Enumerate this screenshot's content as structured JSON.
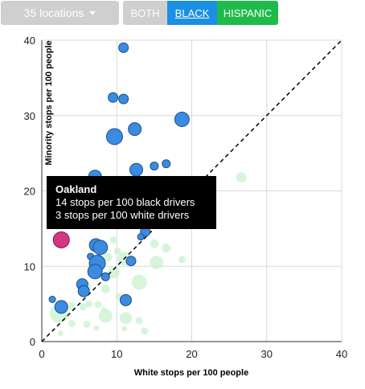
{
  "controls": {
    "locations_label": "35 locations",
    "both_label": "BOTH",
    "black_label": "BLACK",
    "hispanic_label": "HISPANIC",
    "active": "BLACK"
  },
  "colors": {
    "black_fill": "#3b8be0",
    "black_stroke": "#1d4f8a",
    "highlight_fill": "#d63584",
    "hispanic_fill": "#c9f2cf",
    "diagonal": "#000000",
    "grid": "#d9d9d9"
  },
  "tooltip": {
    "title": "Oakland",
    "line1": "14 stops per 100 black drivers",
    "line2": "3 stops per 100 white drivers"
  },
  "chart_data": {
    "type": "scatter",
    "xlabel": "White stops per 100 people",
    "ylabel": "Minority stops per 100 people",
    "xlim": [
      0,
      40
    ],
    "ylim": [
      0,
      40
    ],
    "xticks": [
      0,
      10,
      20,
      30,
      40
    ],
    "yticks": [
      0,
      10,
      20,
      30,
      40
    ],
    "grid": true,
    "reference_line": "y = x (dashed)",
    "series": [
      {
        "points": [
          {
            "x": 10.9,
            "y": 39.0,
            "r": 6
          },
          {
            "x": 9.5,
            "y": 32.4,
            "r": 6
          },
          {
            "x": 10.9,
            "y": 32.2,
            "r": 6
          },
          {
            "x": 18.7,
            "y": 29.5,
            "r": 9
          },
          {
            "x": 12.4,
            "y": 28.2,
            "r": 8
          },
          {
            "x": 9.7,
            "y": 27.2,
            "r": 10
          },
          {
            "x": 15.0,
            "y": 23.3,
            "r": 5
          },
          {
            "x": 16.6,
            "y": 23.6,
            "r": 5
          },
          {
            "x": 12.6,
            "y": 22.8,
            "r": 8
          },
          {
            "x": 7.1,
            "y": 21.9,
            "r": 8
          },
          {
            "x": 13.8,
            "y": 14.6,
            "r": 6
          },
          {
            "x": 13.2,
            "y": 13.9,
            "r": 4
          },
          {
            "x": 7.7,
            "y": 15.8,
            "r": 6
          },
          {
            "x": 7.2,
            "y": 12.8,
            "r": 8
          },
          {
            "x": 7.8,
            "y": 12.5,
            "r": 9
          },
          {
            "x": 6.5,
            "y": 11.3,
            "r": 4
          },
          {
            "x": 11.9,
            "y": 10.7,
            "r": 6
          },
          {
            "x": 7.4,
            "y": 10.4,
            "r": 10
          },
          {
            "x": 7.1,
            "y": 9.3,
            "r": 9
          },
          {
            "x": 8.5,
            "y": 8.6,
            "r": 5
          },
          {
            "x": 5.4,
            "y": 7.6,
            "r": 7
          },
          {
            "x": 5.6,
            "y": 6.7,
            "r": 7
          },
          {
            "x": 1.4,
            "y": 5.6,
            "r": 4
          },
          {
            "x": 11.2,
            "y": 5.5,
            "r": 7
          },
          {
            "x": 2.6,
            "y": 4.6,
            "r": 8
          }
        ]
      },
      {
        "highlight": true,
        "points": [
          {
            "x": 2.6,
            "y": 13.5,
            "r": 10
          }
        ]
      },
      {
        "faded": true,
        "points": [
          {
            "x": 26.6,
            "y": 21.8,
            "r": 6
          },
          {
            "x": 13.0,
            "y": 16.5,
            "r": 4
          },
          {
            "x": 14.9,
            "y": 15.6,
            "r": 5
          },
          {
            "x": 13.3,
            "y": 14.2,
            "r": 3
          },
          {
            "x": 9.6,
            "y": 13.5,
            "r": 4
          },
          {
            "x": 15.0,
            "y": 13.0,
            "r": 5
          },
          {
            "x": 16.6,
            "y": 12.4,
            "r": 5
          },
          {
            "x": 10.1,
            "y": 12.0,
            "r": 4
          },
          {
            "x": 8.8,
            "y": 11.2,
            "r": 5
          },
          {
            "x": 11.0,
            "y": 11.0,
            "r": 8
          },
          {
            "x": 15.3,
            "y": 10.5,
            "r": 8
          },
          {
            "x": 18.7,
            "y": 10.9,
            "r": 4
          },
          {
            "x": 8.1,
            "y": 10.3,
            "r": 4
          },
          {
            "x": 9.6,
            "y": 9.2,
            "r": 7
          },
          {
            "x": 13.0,
            "y": 7.9,
            "r": 9
          },
          {
            "x": 6.0,
            "y": 7.3,
            "r": 5
          },
          {
            "x": 8.5,
            "y": 7.0,
            "r": 5
          },
          {
            "x": 10.3,
            "y": 6.0,
            "r": 4
          },
          {
            "x": 6.3,
            "y": 5.0,
            "r": 4
          },
          {
            "x": 7.5,
            "y": 4.9,
            "r": 4
          },
          {
            "x": 3.9,
            "y": 4.7,
            "r": 5
          },
          {
            "x": 5.5,
            "y": 4.6,
            "r": 4
          },
          {
            "x": 8.3,
            "y": 4.2,
            "r": 3
          },
          {
            "x": 2.3,
            "y": 3.7,
            "r": 11
          },
          {
            "x": 8.5,
            "y": 3.4,
            "r": 8
          },
          {
            "x": 11.2,
            "y": 3.1,
            "r": 7
          },
          {
            "x": 13.0,
            "y": 2.8,
            "r": 4
          },
          {
            "x": 4.0,
            "y": 2.4,
            "r": 4
          },
          {
            "x": 6.0,
            "y": 2.3,
            "r": 4
          },
          {
            "x": 7.3,
            "y": 1.8,
            "r": 3
          },
          {
            "x": 11.0,
            "y": 1.7,
            "r": 3
          },
          {
            "x": 13.7,
            "y": 1.4,
            "r": 4
          },
          {
            "x": 2.5,
            "y": 1.1,
            "r": 3
          }
        ]
      }
    ]
  }
}
